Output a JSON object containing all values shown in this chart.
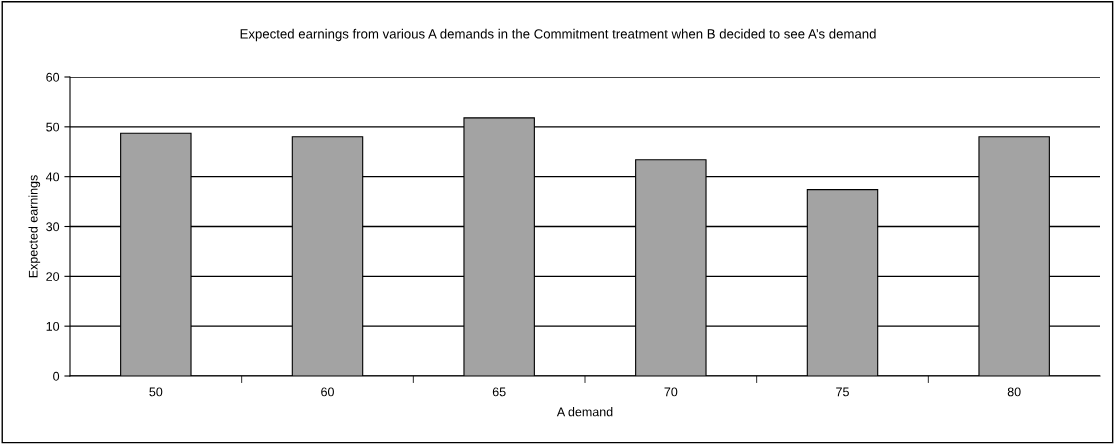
{
  "chart_data": {
    "type": "bar",
    "title": "Expected earnings from various A demands in the Commitment treatment when B decided to see A’s demand",
    "xlabel": "A demand",
    "ylabel": "Expected earnings",
    "categories": [
      "50",
      "60",
      "65",
      "70",
      "75",
      "80"
    ],
    "values": [
      48.7,
      48.0,
      51.8,
      43.4,
      37.4,
      48.0
    ],
    "color": "#a3a3a3",
    "ylim": [
      0,
      60
    ],
    "yticks": [
      0,
      10,
      20,
      30,
      40,
      50,
      60
    ],
    "grid": "y"
  }
}
